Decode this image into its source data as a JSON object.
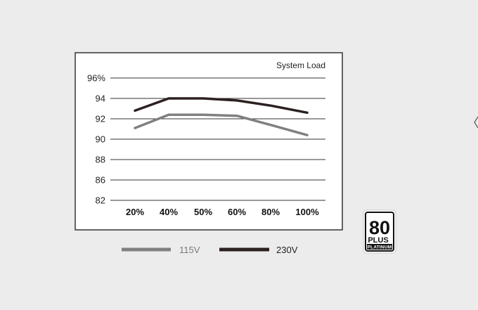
{
  "chart_data": {
    "type": "line",
    "title": "System Load",
    "xlabel": "",
    "ylabel": "",
    "categories": [
      "20%",
      "40%",
      "50%",
      "60%",
      "80%",
      "100%"
    ],
    "ylim": [
      82,
      96
    ],
    "y_ticks": [
      "96%",
      "94",
      "92",
      "90",
      "88",
      "86",
      "82"
    ],
    "grid": true,
    "legend_position": "bottom",
    "series": [
      {
        "name": "115V",
        "color": "#808080",
        "values": [
          91.1,
          92.4,
          92.4,
          92.3,
          91.4,
          90.4
        ]
      },
      {
        "name": "230V",
        "color": "#2b2020",
        "values": [
          92.8,
          94.0,
          94.0,
          93.8,
          93.3,
          92.6
        ]
      }
    ]
  },
  "badge": {
    "main": "80",
    "plus": "PLUS",
    "tier": "PLATINUM"
  }
}
